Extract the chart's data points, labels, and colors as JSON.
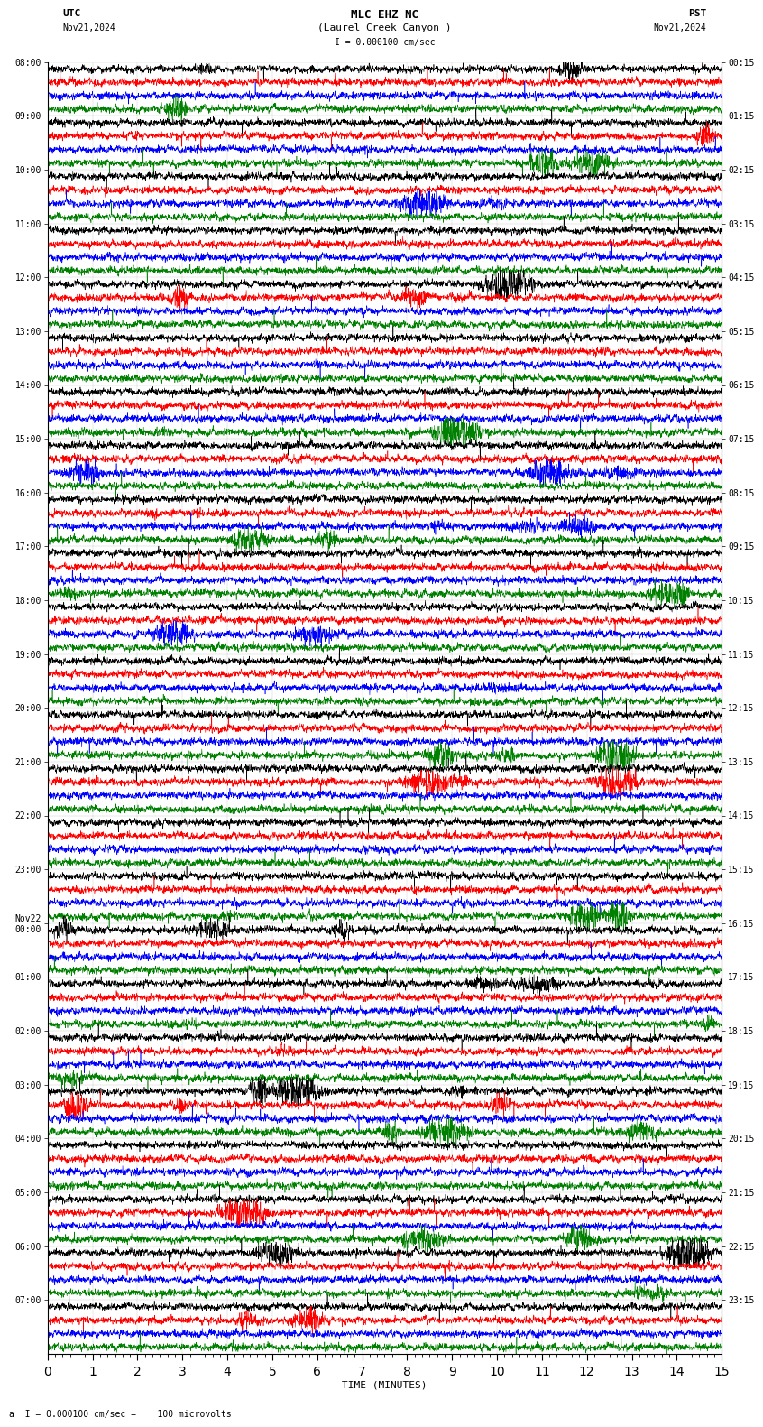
{
  "title_line1": "MLC EHZ NC",
  "title_line2": "(Laurel Creek Canyon )",
  "scale_label": "I = 0.000100 cm/sec",
  "utc_label": "UTC",
  "pst_label": "PST",
  "date_left": "Nov21,2024",
  "date_right": "Nov21,2024",
  "bottom_label": "a  I = 0.000100 cm/sec =    100 microvolts",
  "xlabel": "TIME (MINUTES)",
  "left_times": [
    "08:00",
    "09:00",
    "10:00",
    "11:00",
    "12:00",
    "13:00",
    "14:00",
    "15:00",
    "16:00",
    "17:00",
    "18:00",
    "19:00",
    "20:00",
    "21:00",
    "22:00",
    "23:00",
    "Nov22\n00:00",
    "01:00",
    "02:00",
    "03:00",
    "04:00",
    "05:00",
    "06:00",
    "07:00"
  ],
  "right_times": [
    "00:15",
    "01:15",
    "02:15",
    "03:15",
    "04:15",
    "05:15",
    "06:15",
    "07:15",
    "08:15",
    "09:15",
    "10:15",
    "11:15",
    "12:15",
    "13:15",
    "14:15",
    "15:15",
    "16:15",
    "17:15",
    "18:15",
    "19:15",
    "20:15",
    "21:15",
    "22:15",
    "23:15"
  ],
  "colors": [
    "black",
    "red",
    "blue",
    "green"
  ],
  "n_traces_per_hour": 4,
  "n_hours": 24,
  "trace_duration_minutes": 15,
  "background_color": "white"
}
